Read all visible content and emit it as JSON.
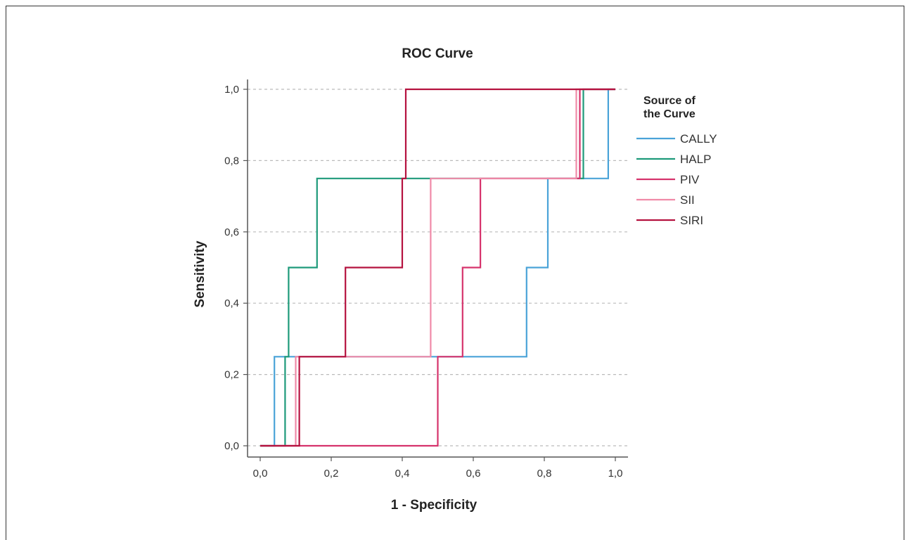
{
  "chart_data": {
    "type": "line",
    "title": "ROC Curve",
    "xlabel": "1 - Specificity",
    "ylabel": "Sensitivity",
    "xlim": [
      0,
      1
    ],
    "ylim": [
      0,
      1
    ],
    "xticks": [
      "0,0",
      "0,2",
      "0,4",
      "0,6",
      "0,8",
      "1,0"
    ],
    "yticks": [
      "0,0",
      "0,2",
      "0,4",
      "0,6",
      "0,8",
      "1,0"
    ],
    "grid": "horizontal dashed",
    "legend": {
      "title": "Source of the Curve",
      "placement": "right"
    },
    "series": [
      {
        "name": "CALLY",
        "color": "#4aa3d8",
        "points": [
          [
            0.0,
            0.0
          ],
          [
            0.04,
            0.0
          ],
          [
            0.04,
            0.25
          ],
          [
            0.75,
            0.25
          ],
          [
            0.75,
            0.5
          ],
          [
            0.81,
            0.5
          ],
          [
            0.81,
            0.75
          ],
          [
            0.98,
            0.75
          ],
          [
            0.98,
            1.0
          ],
          [
            1.0,
            1.0
          ]
        ]
      },
      {
        "name": "HALP",
        "color": "#1e9a7a",
        "points": [
          [
            0.0,
            0.0
          ],
          [
            0.07,
            0.0
          ],
          [
            0.07,
            0.25
          ],
          [
            0.08,
            0.25
          ],
          [
            0.08,
            0.5
          ],
          [
            0.16,
            0.5
          ],
          [
            0.16,
            0.75
          ],
          [
            0.91,
            0.75
          ],
          [
            0.91,
            1.0
          ],
          [
            1.0,
            1.0
          ]
        ]
      },
      {
        "name": "PIV",
        "color": "#d6336c",
        "points": [
          [
            0.0,
            0.0
          ],
          [
            0.5,
            0.0
          ],
          [
            0.5,
            0.25
          ],
          [
            0.57,
            0.25
          ],
          [
            0.57,
            0.5
          ],
          [
            0.62,
            0.5
          ],
          [
            0.62,
            0.75
          ],
          [
            0.9,
            0.75
          ],
          [
            0.9,
            1.0
          ],
          [
            1.0,
            1.0
          ]
        ]
      },
      {
        "name": "SII",
        "color": "#f08aa8",
        "points": [
          [
            0.0,
            0.0
          ],
          [
            0.1,
            0.0
          ],
          [
            0.1,
            0.25
          ],
          [
            0.48,
            0.25
          ],
          [
            0.48,
            0.75
          ],
          [
            0.89,
            0.75
          ],
          [
            0.89,
            1.0
          ],
          [
            1.0,
            1.0
          ]
        ]
      },
      {
        "name": "SIRI",
        "color": "#b5123f",
        "points": [
          [
            0.0,
            0.0
          ],
          [
            0.11,
            0.0
          ],
          [
            0.11,
            0.25
          ],
          [
            0.24,
            0.25
          ],
          [
            0.24,
            0.5
          ],
          [
            0.4,
            0.5
          ],
          [
            0.4,
            0.75
          ],
          [
            0.41,
            0.75
          ],
          [
            0.41,
            1.0
          ],
          [
            1.0,
            1.0
          ]
        ]
      }
    ]
  }
}
